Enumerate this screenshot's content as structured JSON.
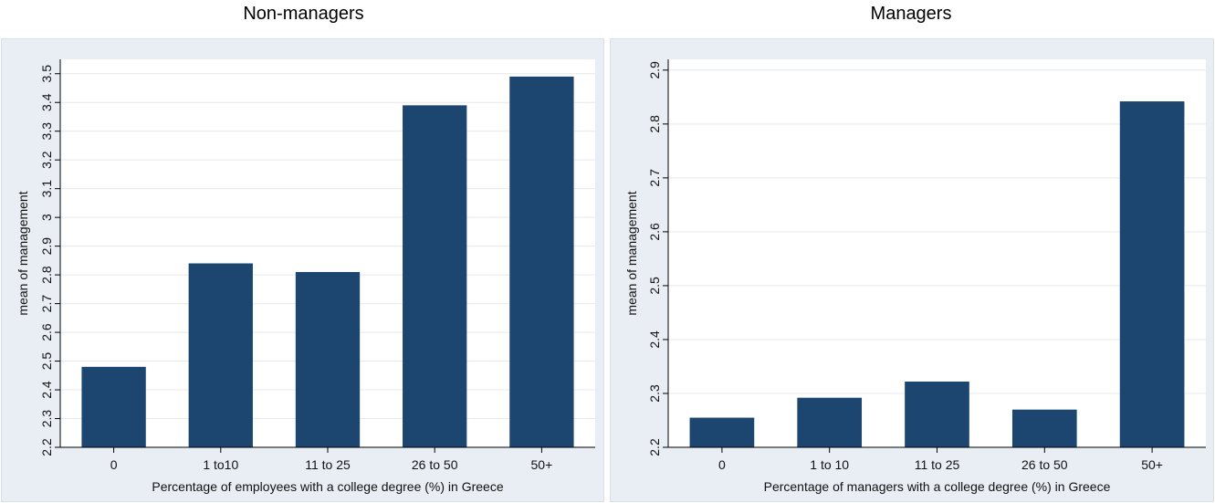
{
  "colors": {
    "bar": "#1c4670",
    "panel_bg": "#e9eef4",
    "plot_bg": "#ffffff",
    "grid": "#e4e9ee",
    "axis": "#000000"
  },
  "chart_data": [
    {
      "type": "bar",
      "title": "Non-managers",
      "xlabel": "Percentage of employees with a college degree (%) in Greece",
      "ylabel": "mean of management",
      "categories": [
        "0",
        "1 to10",
        "11 to 25",
        "26 to 50",
        "50+"
      ],
      "values": [
        2.48,
        2.84,
        2.81,
        3.39,
        3.49
      ],
      "ylim": [
        2.2,
        3.55
      ],
      "yticks": [
        2.2,
        2.3,
        2.4,
        2.5,
        2.6,
        2.7,
        2.8,
        2.9,
        3,
        3.1,
        3.2,
        3.3,
        3.4,
        3.5
      ],
      "ytick_labels": [
        "2.2",
        "2.3",
        "2.4",
        "2.5",
        "2.6",
        "2.7",
        "2.8",
        "2.9",
        "3",
        "3.1",
        "3.2",
        "3.3",
        "3.4",
        "3.5"
      ],
      "grid": true,
      "legend": "none"
    },
    {
      "type": "bar",
      "title": "Managers",
      "xlabel": "Percentage of managers with a college degree (%) in Greece",
      "ylabel": "mean of management",
      "categories": [
        "0",
        "1 to 10",
        "11 to 25",
        "26 to 50",
        "50+"
      ],
      "values": [
        2.255,
        2.292,
        2.322,
        2.27,
        2.842
      ],
      "ylim": [
        2.2,
        2.92
      ],
      "yticks": [
        2.2,
        2.3,
        2.4,
        2.5,
        2.6,
        2.7,
        2.8,
        2.9
      ],
      "ytick_labels": [
        "2.2",
        "2.3",
        "2.4",
        "2.5",
        "2.6",
        "2.7",
        "2.8",
        "2.9"
      ],
      "grid": true,
      "legend": "none"
    }
  ]
}
